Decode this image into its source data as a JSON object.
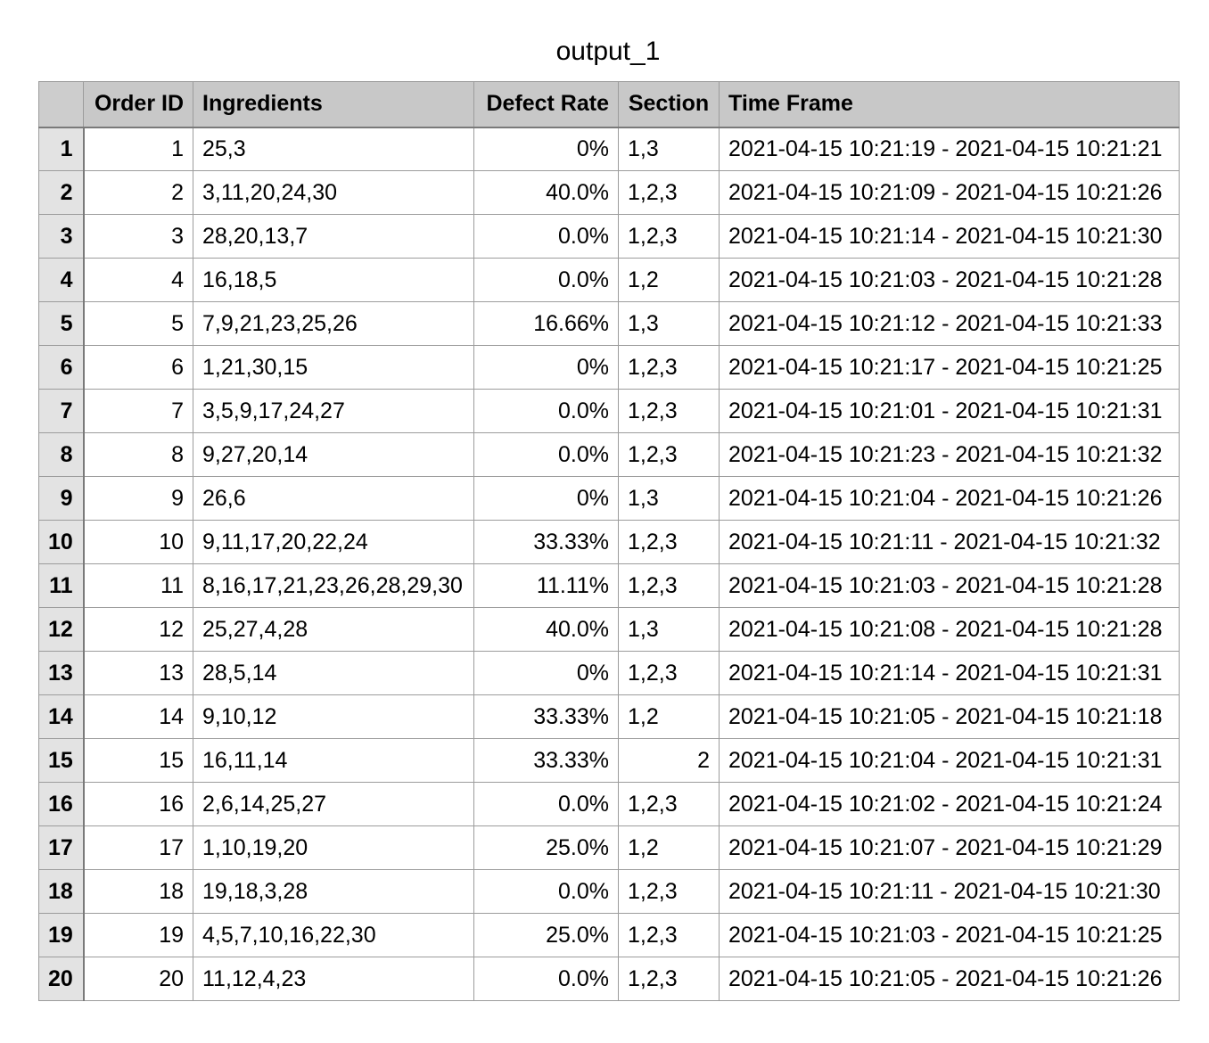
{
  "title": "output_1",
  "columns": {
    "order_id": "Order ID",
    "ingredients": "Ingredients",
    "defect_rate": "Defect Rate",
    "section": "Section",
    "time_frame": "Time Frame"
  },
  "rows": [
    {
      "n": "1",
      "order_id": "1",
      "ingredients": "25,3",
      "defect_rate": "0%",
      "section": "1,3",
      "time_frame": "2021-04-15 10:21:19 - 2021-04-15 10:21:21"
    },
    {
      "n": "2",
      "order_id": "2",
      "ingredients": "3,11,20,24,30",
      "defect_rate": "40.0%",
      "section": "1,2,3",
      "time_frame": "2021-04-15 10:21:09 - 2021-04-15 10:21:26"
    },
    {
      "n": "3",
      "order_id": "3",
      "ingredients": "28,20,13,7",
      "defect_rate": "0.0%",
      "section": "1,2,3",
      "time_frame": "2021-04-15 10:21:14 - 2021-04-15 10:21:30"
    },
    {
      "n": "4",
      "order_id": "4",
      "ingredients": "16,18,5",
      "defect_rate": "0.0%",
      "section": "1,2",
      "time_frame": "2021-04-15 10:21:03 - 2021-04-15 10:21:28"
    },
    {
      "n": "5",
      "order_id": "5",
      "ingredients": "7,9,21,23,25,26",
      "defect_rate": "16.66%",
      "section": "1,3",
      "time_frame": "2021-04-15 10:21:12 - 2021-04-15 10:21:33"
    },
    {
      "n": "6",
      "order_id": "6",
      "ingredients": "1,21,30,15",
      "defect_rate": "0%",
      "section": "1,2,3",
      "time_frame": "2021-04-15 10:21:17 - 2021-04-15 10:21:25"
    },
    {
      "n": "7",
      "order_id": "7",
      "ingredients": "3,5,9,17,24,27",
      "defect_rate": "0.0%",
      "section": "1,2,3",
      "time_frame": "2021-04-15 10:21:01 - 2021-04-15 10:21:31"
    },
    {
      "n": "8",
      "order_id": "8",
      "ingredients": "9,27,20,14",
      "defect_rate": "0.0%",
      "section": "1,2,3",
      "time_frame": "2021-04-15 10:21:23 - 2021-04-15 10:21:32"
    },
    {
      "n": "9",
      "order_id": "9",
      "ingredients": "26,6",
      "defect_rate": "0%",
      "section": "1,3",
      "time_frame": "2021-04-15 10:21:04 - 2021-04-15 10:21:26"
    },
    {
      "n": "10",
      "order_id": "10",
      "ingredients": "9,11,17,20,22,24",
      "defect_rate": "33.33%",
      "section": "1,2,3",
      "time_frame": "2021-04-15 10:21:11 - 2021-04-15 10:21:32"
    },
    {
      "n": "11",
      "order_id": "11",
      "ingredients": "8,16,17,21,23,26,28,29,30",
      "defect_rate": "11.11%",
      "section": "1,2,3",
      "time_frame": "2021-04-15 10:21:03 - 2021-04-15 10:21:28"
    },
    {
      "n": "12",
      "order_id": "12",
      "ingredients": "25,27,4,28",
      "defect_rate": "40.0%",
      "section": "1,3",
      "time_frame": "2021-04-15 10:21:08 - 2021-04-15 10:21:28"
    },
    {
      "n": "13",
      "order_id": "13",
      "ingredients": "28,5,14",
      "defect_rate": "0%",
      "section": "1,2,3",
      "time_frame": "2021-04-15 10:21:14 - 2021-04-15 10:21:31"
    },
    {
      "n": "14",
      "order_id": "14",
      "ingredients": "9,10,12",
      "defect_rate": "33.33%",
      "section": "1,2",
      "time_frame": "2021-04-15 10:21:05 - 2021-04-15 10:21:18"
    },
    {
      "n": "15",
      "order_id": "15",
      "ingredients": "16,11,14",
      "defect_rate": "33.33%",
      "section": "2",
      "section_numeric": true,
      "time_frame": "2021-04-15 10:21:04 - 2021-04-15 10:21:31"
    },
    {
      "n": "16",
      "order_id": "16",
      "ingredients": "2,6,14,25,27",
      "defect_rate": "0.0%",
      "section": "1,2,3",
      "time_frame": "2021-04-15 10:21:02 - 2021-04-15 10:21:24"
    },
    {
      "n": "17",
      "order_id": "17",
      "ingredients": "1,10,19,20",
      "defect_rate": "25.0%",
      "section": "1,2",
      "time_frame": "2021-04-15 10:21:07 - 2021-04-15 10:21:29"
    },
    {
      "n": "18",
      "order_id": "18",
      "ingredients": "19,18,3,28",
      "defect_rate": "0.0%",
      "section": "1,2,3",
      "time_frame": "2021-04-15 10:21:11 - 2021-04-15 10:21:30"
    },
    {
      "n": "19",
      "order_id": "19",
      "ingredients": "4,5,7,10,16,22,30",
      "defect_rate": "25.0%",
      "section": "1,2,3",
      "time_frame": "2021-04-15 10:21:03 - 2021-04-15 10:21:25"
    },
    {
      "n": "20",
      "order_id": "20",
      "ingredients": "11,12,4,23",
      "defect_rate": "0.0%",
      "section": "1,2,3",
      "time_frame": "2021-04-15 10:21:05 - 2021-04-15 10:21:26"
    }
  ]
}
